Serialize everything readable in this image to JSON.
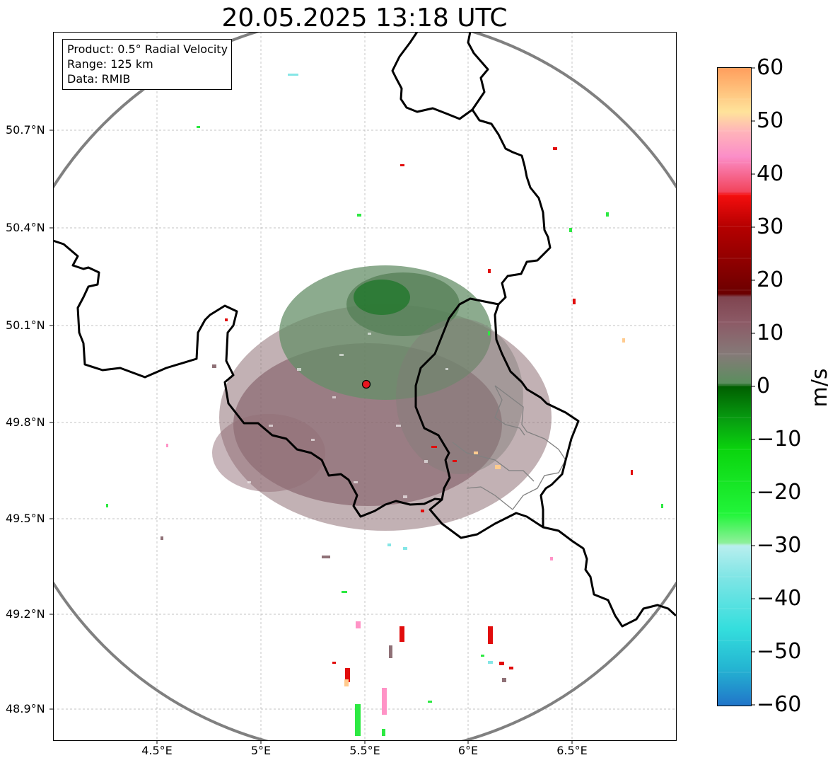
{
  "title": "20.05.2025 13:18 UTC",
  "info": {
    "product": "Product: 0.5° Radial Velocity",
    "range": "Range: 125 km",
    "source": "Data: RMIB"
  },
  "lat_labels": [
    "50.7°N",
    "50.4°N",
    "50.1°N",
    "49.8°N",
    "49.5°N",
    "49.2°N",
    "48.9°N"
  ],
  "lon_labels": [
    "4.5°E",
    "5°E",
    "5.5°E",
    "6°E",
    "6.5°E"
  ],
  "colorbar": {
    "unit": "m/s",
    "ticks": [
      "60",
      "50",
      "40",
      "30",
      "20",
      "10",
      "0",
      "−10",
      "−20",
      "−30",
      "−40",
      "−50",
      "−60"
    ],
    "min": -60,
    "max": 60
  },
  "colors": {
    "range_ring": "#808080",
    "border": "#000000",
    "radar_site": "#e8151f",
    "grid": "#b0b0b0"
  },
  "radar_site": {
    "lon": 5.505,
    "lat": 49.914
  }
}
